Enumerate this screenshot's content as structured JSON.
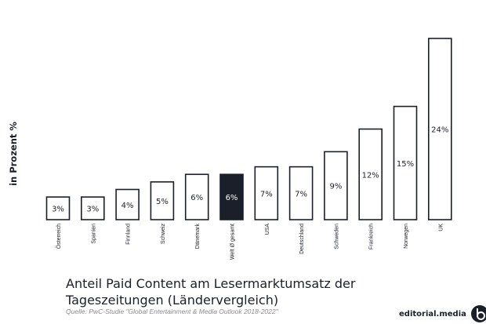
{
  "chart_data": {
    "type": "bar",
    "ylabel": "in Prozent %",
    "categories": [
      "Österreich",
      "Spanien",
      "Finnland",
      "Schweiz",
      "Dänemark",
      "Welt Ø gesamt",
      "USA",
      "Deutschland",
      "Schweden",
      "Frankreich",
      "Norwegen",
      "UK"
    ],
    "values": [
      3,
      3,
      4,
      5,
      6,
      6,
      7,
      7,
      9,
      12,
      15,
      24
    ],
    "value_labels": [
      "3%",
      "3%",
      "4%",
      "5%",
      "6%",
      "6%",
      "7%",
      "7%",
      "9%",
      "12%",
      "15%",
      "24%"
    ],
    "highlight_index": 5,
    "ylim": [
      0,
      24
    ],
    "grid": false,
    "bar_color": "#ffffff",
    "bar_border_color": "#1b1f2a",
    "highlight_color": "#1b1f2a"
  },
  "title": "Anteil Paid Content am Lesermarktumsatz der Tageszeitungen (Ländervergleich)",
  "source": "Quelle: PwC-Studie \"Global Entertainment & Media Outlook 2018-2022\"",
  "brand": {
    "name": "editorial.media",
    "logo_icon": "editorial-media-logo-icon"
  }
}
